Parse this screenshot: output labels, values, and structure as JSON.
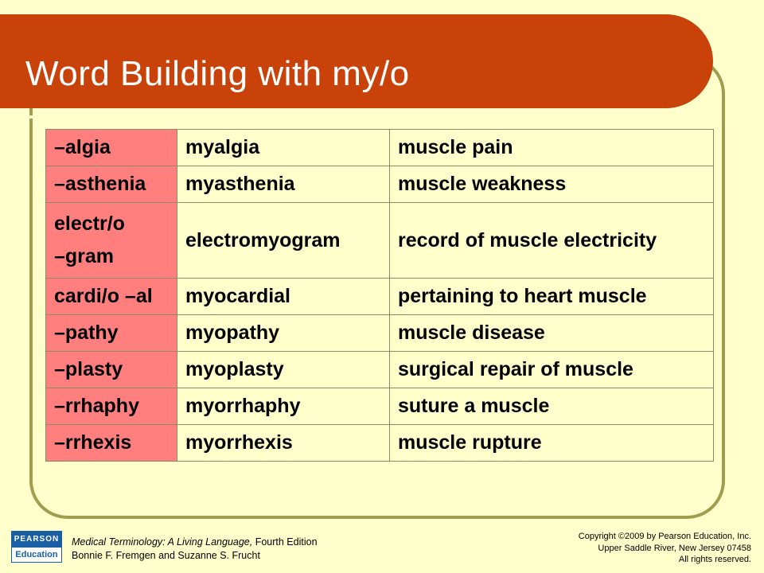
{
  "title": "Word Building with my/o",
  "table": {
    "rows": [
      {
        "part": "–algia",
        "term": "myalgia",
        "meaning": "muscle pain"
      },
      {
        "part": "–asthenia",
        "term": "myasthenia",
        "meaning": "muscle weakness"
      },
      {
        "part_lines": [
          "electr/o",
          "–gram"
        ],
        "term": "electromyogram",
        "meaning": "record of muscle electricity"
      },
      {
        "part": "cardi/o –al",
        "term": "myocardial",
        "meaning": "pertaining to heart muscle"
      },
      {
        "part": "–pathy",
        "term": "myopathy",
        "meaning": "muscle disease"
      },
      {
        "part": "–plasty",
        "term": "myoplasty",
        "meaning": "surgical repair of muscle"
      },
      {
        "part": "–rrhaphy",
        "term": "myorrhaphy",
        "meaning": "suture a muscle"
      },
      {
        "part": "–rrhexis",
        "term": "myorrhexis",
        "meaning": "muscle rupture"
      }
    ]
  },
  "footer": {
    "logo": {
      "top": "PEARSON",
      "bottom": "Education"
    },
    "book_title": "Medical Terminology: A Living Language,",
    "edition": " Fourth Edition",
    "authors": "Bonnie F. Fremgen and Suzanne S. Frucht",
    "copyright": [
      "Copyright ©2009 by Pearson Education, Inc.",
      "Upper Saddle River, New Jersey 07458",
      "All rights reserved."
    ]
  },
  "colors": {
    "background": "#ffffcc",
    "title_bar": "#c8420a",
    "prefix_column": "#ff7f7f",
    "frame": "#a09e4e"
  }
}
